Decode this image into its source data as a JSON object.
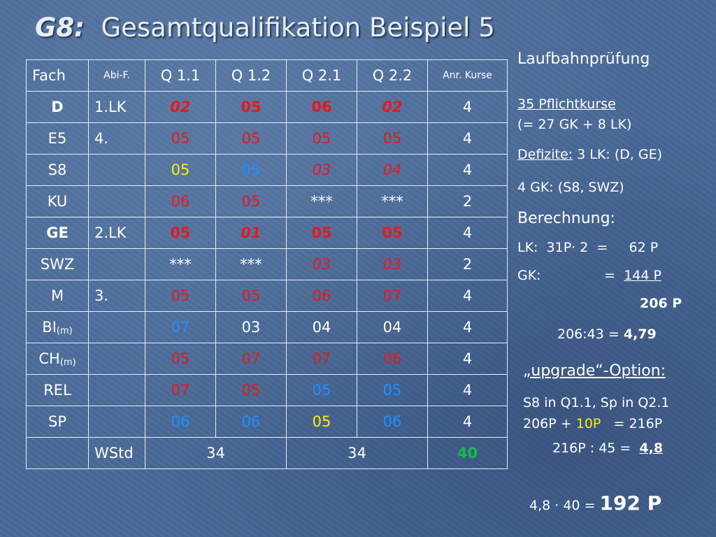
{
  "title": {
    "prefix": "G8:",
    "text": "Gesamtqualifikation Beispiel 5"
  },
  "table": {
    "header": [
      "Fach",
      "Abi-F.",
      "Q 1.1",
      "Q 1.2",
      "Q 2.1",
      "Q 2.2",
      "Anr. Kurse"
    ],
    "rows": [
      {
        "fach": "D",
        "sub": "",
        "abi": "1.LK",
        "q11": "02",
        "q12": "05",
        "q21": "06",
        "q22": "02",
        "anr": "4"
      },
      {
        "fach": "E5",
        "sub": "",
        "abi": "4.",
        "q11": "05",
        "q12": "05",
        "q21": "05",
        "q22": "05",
        "anr": "4"
      },
      {
        "fach": "S8",
        "sub": "",
        "abi": "",
        "q11": "05",
        "q12": "05",
        "q21": "03",
        "q22": "04",
        "anr": "4"
      },
      {
        "fach": "KU",
        "sub": "",
        "abi": "",
        "q11": "06",
        "q12": "05",
        "q21": "***",
        "q22": "***",
        "anr": "2"
      },
      {
        "fach": "GE",
        "sub": "",
        "abi": "2.LK",
        "q11": "05",
        "q12": "01",
        "q21": "05",
        "q22": "05",
        "anr": "4"
      },
      {
        "fach": "SWZ",
        "sub": "",
        "abi": "",
        "q11": "***",
        "q12": "***",
        "q21": "03",
        "q22": "03",
        "anr": "2"
      },
      {
        "fach": "M",
        "sub": "",
        "abi": "3.",
        "q11": "05",
        "q12": "05",
        "q21": "06",
        "q22": "07",
        "anr": "4"
      },
      {
        "fach": "BI",
        "sub": "(m)",
        "abi": "",
        "q11": "07",
        "q12": "03",
        "q21": "04",
        "q22": "04",
        "anr": "4"
      },
      {
        "fach": "CH",
        "sub": "(m)",
        "abi": "",
        "q11": "05",
        "q12": "07",
        "q21": "07",
        "q22": "06",
        "anr": "4"
      },
      {
        "fach": "REL",
        "sub": "",
        "abi": "",
        "q11": "07",
        "q12": "05",
        "q21": "05",
        "q22": "05",
        "anr": "4"
      },
      {
        "fach": "SP",
        "sub": "",
        "abi": "",
        "q11": "06",
        "q12": "06",
        "q21": "05",
        "q22": "06",
        "anr": "4"
      }
    ],
    "footer": {
      "label": "WStd",
      "q1": "34",
      "q2": "34",
      "anr": "40"
    }
  },
  "colors": {
    "red": "#e41a1a",
    "yellow": "#ffef00",
    "blue": "#1e90ff",
    "green": "#0fc043",
    "white": "#ffffff",
    "background": "#4a6a99"
  },
  "right": {
    "laufbahn_title": "Laufbahnprüfung",
    "pflicht_count": "35 Pflichtkurse",
    "pflicht_detail": "(= 27 GK + 8 LK)",
    "defizite_label": "Defizite:",
    "defizite_lk": " 3 LK: (D, GE)",
    "defizite_gk": "4 GK: (S8, SWZ)",
    "berechnung_title": "Berechnung:",
    "lk_line": "LK:  31P· 2  =     62 P",
    "gk_prefix": "GK:               =  ",
    "gk_value": "144 P",
    "sum": "206 P",
    "ratio_prefix": "206:43 = ",
    "ratio_value": "4,79",
    "upgrade_title": "„upgrade“-Option:",
    "upgrade_line1": "S8 in Q1.1, Sp in Q2.1",
    "upgrade_line2_a": "206P + ",
    "upgrade_line2_b": "10P",
    "upgrade_line2_c": "   = 216P",
    "upgrade_line3_prefix": "216P : 45 =  ",
    "upgrade_line3_value": "4,8",
    "final_prefix": "4,8 · 40  = ",
    "final_value": "192 P"
  }
}
